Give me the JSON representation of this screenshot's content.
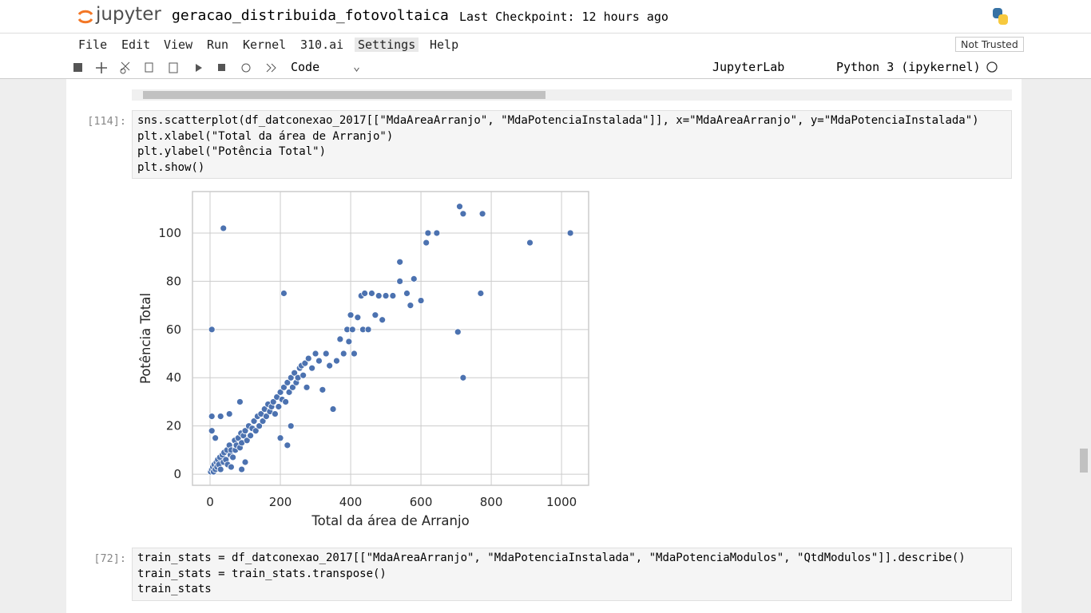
{
  "header": {
    "logo": "jupyter",
    "notebook": "geracao_distribuida_fotovoltaica",
    "checkpoint": "Last Checkpoint: 12 hours ago"
  },
  "menu": [
    "File",
    "Edit",
    "View",
    "Run",
    "Kernel",
    "310.ai",
    "Settings",
    "Help"
  ],
  "trust": "Not Trusted",
  "toolbar": {
    "cell_type": "Code",
    "jupyterlab": "JupyterLab",
    "kernel": "Python 3 (ipykernel)"
  },
  "cells": [
    {
      "prompt": "[114]:",
      "lines": [
        "sns.scatterplot(df_datconexao_2017[[\"MdaAreaArranjo\", \"MdaPotenciaInstalada\"]], x=\"MdaAreaArranjo\", y=\"MdaPotenciaInstalada\")",
        "plt.xlabel(\"Total da área de Arranjo\")",
        "plt.ylabel(\"Potência Total\")",
        "plt.show()"
      ]
    },
    {
      "prompt": "[72]:",
      "lines": [
        "train_stats = df_datconexao_2017[[\"MdaAreaArranjo\", \"MdaPotenciaInstalada\", \"MdaPotenciaModulos\", \"QtdModulos\"]].describe()",
        "train_stats = train_stats.transpose()",
        "train_stats"
      ]
    }
  ],
  "chart_data": {
    "type": "scatter",
    "xlabel": "Total da área de Arranjo",
    "ylabel": "Potência Total",
    "color": "#4c72b0",
    "grid": true,
    "xlim": [
      -50,
      1077
    ],
    "ylim": [
      -4.6,
      117.2
    ],
    "xticks": [
      0,
      200,
      400,
      600,
      800,
      1000
    ],
    "yticks": [
      0,
      20,
      40,
      60,
      80,
      100
    ],
    "x": [
      2,
      5,
      8,
      10,
      12,
      15,
      18,
      20,
      22,
      25,
      28,
      30,
      35,
      38,
      40,
      45,
      48,
      50,
      55,
      58,
      60,
      65,
      70,
      72,
      75,
      80,
      85,
      88,
      90,
      95,
      100,
      105,
      110,
      115,
      120,
      125,
      130,
      135,
      140,
      145,
      150,
      155,
      160,
      165,
      170,
      175,
      180,
      185,
      190,
      195,
      200,
      205,
      210,
      215,
      220,
      225,
      230,
      235,
      240,
      245,
      250,
      255,
      260,
      265,
      270,
      275,
      280,
      290,
      300,
      310,
      320,
      330,
      340,
      350,
      360,
      370,
      380,
      390,
      395,
      400,
      405,
      410,
      420,
      430,
      435,
      440,
      450,
      460,
      470,
      480,
      490,
      500,
      520,
      540,
      560,
      570,
      580,
      600,
      220,
      230,
      200,
      100,
      90,
      60,
      5,
      5,
      30,
      55,
      85,
      5,
      38,
      210,
      710,
      720,
      775,
      620,
      645,
      615,
      910,
      1025,
      540,
      770,
      705,
      720,
      15
    ],
    "y": [
      1,
      2,
      3,
      1,
      4,
      2,
      5,
      3,
      6,
      4,
      7,
      2,
      8,
      5,
      9,
      6,
      10,
      4,
      12,
      8,
      10,
      7,
      14,
      10,
      12,
      15,
      11,
      17,
      13,
      16,
      18,
      14,
      20,
      16,
      19,
      22,
      18,
      24,
      20,
      25,
      22,
      27,
      24,
      29,
      26,
      28,
      30,
      25,
      32,
      28,
      34,
      31,
      36,
      30,
      38,
      34,
      40,
      36,
      42,
      38,
      40,
      44,
      45,
      41,
      46,
      36,
      48,
      44,
      50,
      47,
      35,
      50,
      45,
      27,
      47,
      56,
      50,
      60,
      55,
      66,
      60,
      50,
      65,
      74,
      60,
      75,
      60,
      75,
      66,
      74,
      64,
      74,
      74,
      80,
      75,
      70,
      81,
      72,
      12,
      20,
      15,
      5,
      2,
      3,
      18,
      24,
      24,
      25,
      30,
      60,
      102,
      75,
      111,
      108,
      108,
      100,
      100,
      96,
      96,
      100,
      88,
      75,
      59,
      40,
      15
    ]
  }
}
